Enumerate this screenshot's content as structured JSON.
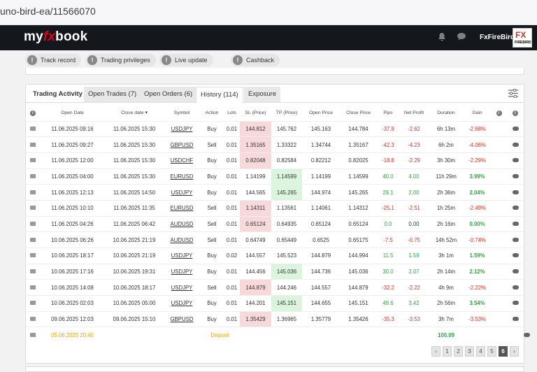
{
  "browser": {
    "url": "uno-bird-ea/11566070"
  },
  "nav": {
    "logo_a": "my",
    "logo_b": "fx",
    "logo_c": "book",
    "username": "FxFireBird",
    "avatar_fx": "FX",
    "avatar_brand": "FIREBIRD"
  },
  "pills": [
    {
      "label": "Track record",
      "icon": "!"
    },
    {
      "label": "Trading privileges",
      "icon": "!"
    },
    {
      "label": "Live update",
      "icon": "!"
    },
    {
      "label": "Cashback",
      "icon": "!"
    }
  ],
  "tabs": [
    {
      "label": "Trading Activity"
    },
    {
      "label": "Open Trades (7)"
    },
    {
      "label": "Open Orders (6)"
    },
    {
      "label": "History (114)"
    },
    {
      "label": "Exposure"
    }
  ],
  "columns": {
    "info": "i",
    "open_date": "Open Date",
    "close_date": "Close date ▾",
    "symbol": "Symbol",
    "action": "Action",
    "lots": "Lots",
    "sl": "SL (Price)",
    "tp": "TP (Price)",
    "open_price": "Open Price",
    "close_price": "Close Price",
    "pips": "Pips",
    "net_profit": "Net Profit",
    "duration": "Duration",
    "gain": "Gain",
    "info2": "i",
    "info3": "i"
  },
  "rows": [
    {
      "open": "11.06.2025 09:16",
      "close": "11.06.2025 15:30",
      "symbol": "USDJPY",
      "action": "Buy",
      "lots": "0.01",
      "sl": "144.812",
      "tp": "145.762",
      "open_price": "145.163",
      "close_price": "144.784",
      "pips": "-37.9",
      "profit": "-2.62",
      "duration": "6h 13m",
      "gain": "-2.68%",
      "hit": "sl",
      "pos": false
    },
    {
      "open": "11.06.2025 09:27",
      "close": "11.06.2025 15:30",
      "symbol": "GBPUSD",
      "action": "Sell",
      "lots": "0.01",
      "sl": "1.35165",
      "tp": "1.33322",
      "open_price": "1.34744",
      "close_price": "1.35167",
      "pips": "-42.3",
      "profit": "-4.23",
      "duration": "6h 2m",
      "gain": "-4.06%",
      "hit": "sl",
      "pos": false
    },
    {
      "open": "11.06.2025 12:00",
      "close": "11.06.2025 15:30",
      "symbol": "USDCHF",
      "action": "Buy",
      "lots": "0.01",
      "sl": "0.82048",
      "tp": "0.82584",
      "open_price": "0.82212",
      "close_price": "0.82025",
      "pips": "-18.8",
      "profit": "-2.29",
      "duration": "3h 30m",
      "gain": "-2.29%",
      "hit": "sl",
      "pos": false
    },
    {
      "open": "11.06.2025 04:00",
      "close": "11.06.2025 15:30",
      "symbol": "EURUSD",
      "action": "Buy",
      "lots": "0.01",
      "sl": "1.14199",
      "tp": "1.14599",
      "open_price": "1.14199",
      "close_price": "1.14599",
      "pips": "40.0",
      "profit": "4.00",
      "duration": "11h 29m",
      "gain": "3.99%",
      "hit": "tp",
      "pos": true
    },
    {
      "open": "11.06.2025 12:13",
      "close": "11.06.2025 14:50",
      "symbol": "USDJPY",
      "action": "Buy",
      "lots": "0.01",
      "sl": "144.565",
      "tp": "145.265",
      "open_price": "144.974",
      "close_price": "145.265",
      "pips": "29.1",
      "profit": "2.00",
      "duration": "2h 36m",
      "gain": "2.04%",
      "hit": "tp",
      "pos": true
    },
    {
      "open": "11.06.2025 10:10",
      "close": "11.06.2025 11:35",
      "symbol": "EURUSD",
      "action": "Sell",
      "lots": "0.01",
      "sl": "1.14311",
      "tp": "1.13561",
      "open_price": "1.14061",
      "close_price": "1.14312",
      "pips": "-25.1",
      "profit": "-2.51",
      "duration": "1h 25m",
      "gain": "-2.49%",
      "hit": "sl",
      "pos": false
    },
    {
      "open": "11.06.2025 04:26",
      "close": "11.06.2025 06:42",
      "symbol": "AUDUSD",
      "action": "Sell",
      "lots": "0.01",
      "sl": "0.65124",
      "tp": "0.64935",
      "open_price": "0.65124",
      "close_price": "0.65124",
      "pips": "0.0",
      "profit": "0.00",
      "duration": "2h 16m",
      "gain": "0.00%",
      "hit": "sl",
      "pos": true
    },
    {
      "open": "10.06.2025 06:26",
      "close": "10.06.2025 21:19",
      "symbol": "AUDUSD",
      "action": "Sell",
      "lots": "0.01",
      "sl": "0.64749",
      "tp": "0.65449",
      "open_price": "0.6525",
      "close_price": "0.65175",
      "pips": "-7.5",
      "profit": "-0.75",
      "duration": "14h 52m",
      "gain": "-0.74%",
      "hit": "none",
      "pos": false
    },
    {
      "open": "10.06.2025 18:17",
      "close": "10.06.2025 21:19",
      "symbol": "USDJPY",
      "action": "Buy",
      "lots": "0.02",
      "sl": "144.557",
      "tp": "145.523",
      "open_price": "144.879",
      "close_price": "144.994",
      "pips": "11.5",
      "profit": "1.59",
      "duration": "3h 1m",
      "gain": "1.59%",
      "hit": "none",
      "pos": true
    },
    {
      "open": "10.06.2025 17:16",
      "close": "10.06.2025 19:31",
      "symbol": "USDJPY",
      "action": "Buy",
      "lots": "0.01",
      "sl": "144.456",
      "tp": "145.036",
      "open_price": "144.736",
      "close_price": "145.036",
      "pips": "30.0",
      "profit": "2.07",
      "duration": "2h 14m",
      "gain": "2.12%",
      "hit": "tp",
      "pos": true
    },
    {
      "open": "10.06.2025 14:08",
      "close": "10.06.2025 18:17",
      "symbol": "USDJPY",
      "action": "Sell",
      "lots": "0.01",
      "sl": "144.879",
      "tp": "144.246",
      "open_price": "144.557",
      "close_price": "144.879",
      "pips": "-32.2",
      "profit": "-2.22",
      "duration": "4h 9m",
      "gain": "-2.22%",
      "hit": "sl",
      "pos": false
    },
    {
      "open": "10.06.2025 02:03",
      "close": "10.06.2025 05:00",
      "symbol": "USDJPY",
      "action": "Buy",
      "lots": "0.01",
      "sl": "144.201",
      "tp": "145.151",
      "open_price": "144.655",
      "close_price": "145.151",
      "pips": "49.6",
      "profit": "3.42",
      "duration": "2h 56m",
      "gain": "3.54%",
      "hit": "tp",
      "pos": true
    },
    {
      "open": "09.06.2025 12:03",
      "close": "09.06.2025 15:10",
      "symbol": "GBPUSD",
      "action": "Buy",
      "lots": "0.01",
      "sl": "1.35429",
      "tp": "1.36965",
      "open_price": "1.35779",
      "close_price": "1.35426",
      "pips": "-35.3",
      "profit": "-3.53",
      "duration": "3h 7m",
      "gain": "-3.53%",
      "hit": "sl",
      "pos": false
    }
  ],
  "deposit": {
    "date": "05.06.2025 20:40",
    "label": "Deposit",
    "amount": "100.09"
  },
  "pager": [
    "‹",
    "1",
    "2",
    "3",
    "4",
    "5",
    "6",
    "›"
  ],
  "pager_current": "6",
  "colors": {
    "accent_red": "#e2001a",
    "loss": "#d0312d",
    "win": "#2da443",
    "deposit": "#e8a20c"
  }
}
